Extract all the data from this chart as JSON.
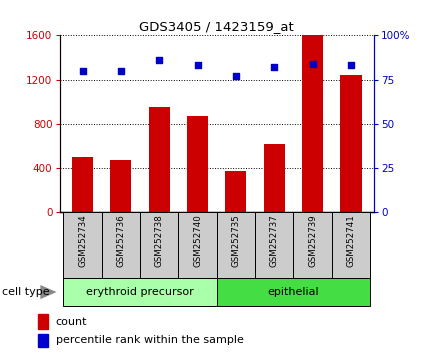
{
  "title": "GDS3405 / 1423159_at",
  "samples": [
    "GSM252734",
    "GSM252736",
    "GSM252738",
    "GSM252740",
    "GSM252735",
    "GSM252737",
    "GSM252739",
    "GSM252741"
  ],
  "counts": [
    500,
    470,
    950,
    870,
    370,
    620,
    1600,
    1240
  ],
  "percentiles": [
    80,
    80,
    86,
    83,
    77,
    82,
    84,
    83
  ],
  "groups": [
    {
      "label": "erythroid precursor",
      "start": 0,
      "end": 4,
      "color": "#aaffaa"
    },
    {
      "label": "epithelial",
      "start": 4,
      "end": 8,
      "color": "#44dd44"
    }
  ],
  "group_label": "cell type",
  "left_ylim": [
    0,
    1600
  ],
  "right_ylim": [
    0,
    100
  ],
  "left_yticks": [
    0,
    400,
    800,
    1200,
    1600
  ],
  "right_yticks": [
    0,
    25,
    50,
    75,
    100
  ],
  "right_yticklabels": [
    "0",
    "25",
    "50",
    "75",
    "100%"
  ],
  "bar_color": "#cc0000",
  "dot_color": "#0000cc",
  "bar_width": 0.55,
  "background_xtick": "#cccccc",
  "legend_count_label": "count",
  "legend_pct_label": "percentile rank within the sample"
}
